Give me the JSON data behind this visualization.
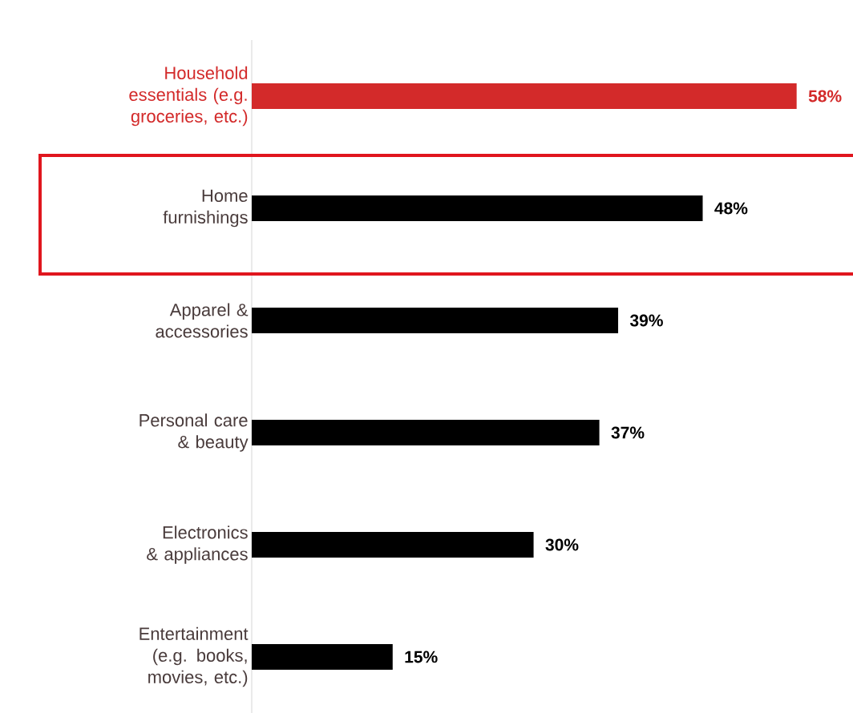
{
  "chart_data": {
    "type": "bar",
    "orientation": "horizontal",
    "categories": [
      "Household essentials (e.g. groceries, etc.)",
      "Home furnishings",
      "Apparel & accessories",
      "Personal care & beauty",
      "Electronics & appliances",
      "Entertainment (e.g. books, movies, etc.)"
    ],
    "values": [
      58,
      48,
      39,
      37,
      30,
      15
    ],
    "colors": [
      "#d32a2a",
      "#000000",
      "#000000",
      "#000000",
      "#000000",
      "#000000"
    ],
    "value_labels": [
      "58%",
      "48%",
      "39%",
      "37%",
      "30%",
      "15%"
    ]
  }
}
